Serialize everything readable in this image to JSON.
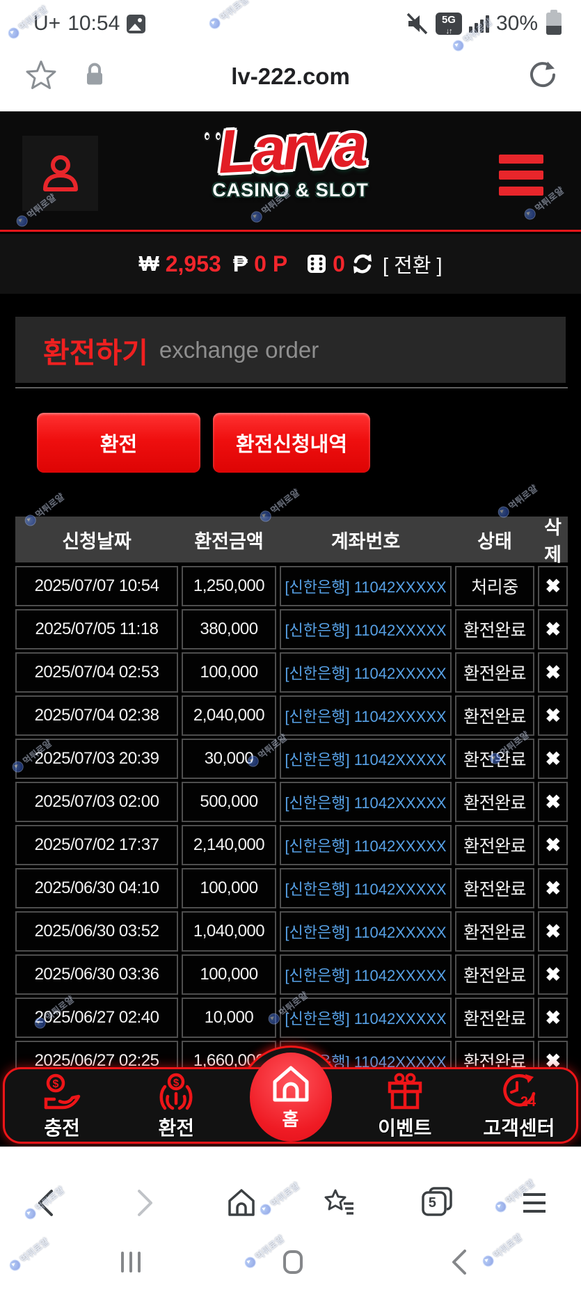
{
  "status_bar": {
    "carrier": "U+",
    "time": "10:54",
    "network_badge": "5G",
    "battery_percent": "30%"
  },
  "browser_top": {
    "url": "lv-222.com"
  },
  "site_header": {
    "logo_text": "Larva",
    "logo_subtext": "CASINO & SLOT"
  },
  "balance_bar": {
    "currency_symbol": "₩",
    "cash_amount": "2,953",
    "point_symbol": "₱",
    "point_amount": "0 P",
    "dice_amount": "0",
    "convert_label": "[ 전환 ]"
  },
  "page_title": {
    "title_ko": "환전하기",
    "title_en": "exchange order"
  },
  "buttons": {
    "exchange": "환전",
    "exchange_history": "환전신청내역"
  },
  "table": {
    "headers": [
      "신청날짜",
      "환전금액",
      "계좌번호",
      "상태",
      "삭제"
    ],
    "delete_glyph": "✖",
    "rows": [
      {
        "date": "2025/07/07 10:54",
        "amount": "1,250,000",
        "account": "[신한은행] 11042XXXXX",
        "status": "처리중"
      },
      {
        "date": "2025/07/05 11:18",
        "amount": "380,000",
        "account": "[신한은행] 11042XXXXX",
        "status": "환전완료"
      },
      {
        "date": "2025/07/04 02:53",
        "amount": "100,000",
        "account": "[신한은행] 11042XXXXX",
        "status": "환전완료"
      },
      {
        "date": "2025/07/04 02:38",
        "amount": "2,040,000",
        "account": "[신한은행] 11042XXXXX",
        "status": "환전완료"
      },
      {
        "date": "2025/07/03 20:39",
        "amount": "30,000",
        "account": "[신한은행] 11042XXXXX",
        "status": "환전완료"
      },
      {
        "date": "2025/07/03 02:00",
        "amount": "500,000",
        "account": "[신한은행] 11042XXXXX",
        "status": "환전완료"
      },
      {
        "date": "2025/07/02 17:37",
        "amount": "2,140,000",
        "account": "[신한은행] 11042XXXXX",
        "status": "환전완료"
      },
      {
        "date": "2025/06/30 04:10",
        "amount": "100,000",
        "account": "[신한은행] 11042XXXXX",
        "status": "환전완료"
      },
      {
        "date": "2025/06/30 03:52",
        "amount": "1,040,000",
        "account": "[신한은행] 11042XXXXX",
        "status": "환전완료"
      },
      {
        "date": "2025/06/30 03:36",
        "amount": "100,000",
        "account": "[신한은행] 11042XXXXX",
        "status": "환전완료"
      },
      {
        "date": "2025/06/27 02:40",
        "amount": "10,000",
        "account": "[신한은행] 11042XXXXX",
        "status": "환전완료"
      },
      {
        "date": "2025/06/27 02:25",
        "amount": "1,660,000",
        "account": "[신한은행] 11042XXXXX",
        "status": "환전완료"
      }
    ]
  },
  "bottom_nav": {
    "items": [
      "충전",
      "환전",
      "홈",
      "이벤트",
      "고객센터"
    ]
  },
  "browser_toolbar": {
    "tab_count": "5"
  },
  "watermark": {
    "text": "먹튀로얄"
  },
  "colors": {
    "accent_red": "#e8262b",
    "balance_red": "#f2262c",
    "link_blue": "#57a1e6"
  }
}
